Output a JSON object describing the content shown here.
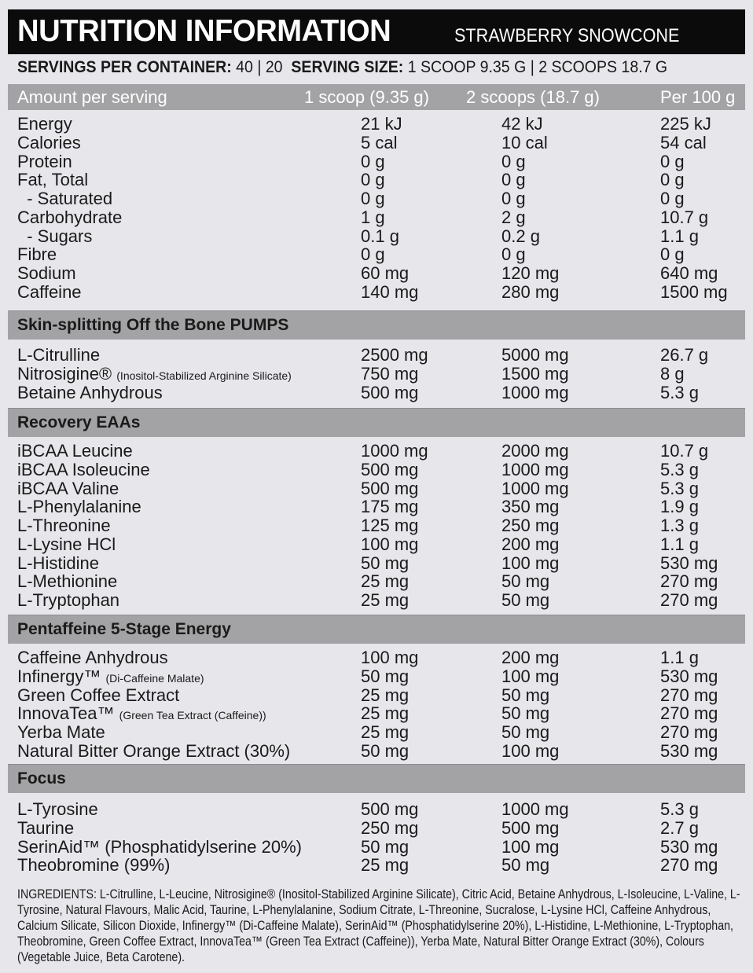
{
  "header": {
    "title": "NUTRITION INFORMATION",
    "flavour": "STRAWBERRY SNOWCONE"
  },
  "servings": {
    "per_container_label": "SERVINGS PER CONTAINER:",
    "per_container_value": "40 | 20",
    "size_label": "SERVING SIZE:",
    "size_value": "1 SCOOP 9.35 G | 2 SCOOPS 18.7 G"
  },
  "columns": [
    "Amount per serving",
    "1 scoop (9.35 g)",
    "2 scoops (18.7 g)",
    "Per 100 g"
  ],
  "nutrition": [
    {
      "name": "Energy",
      "v1": "21 kJ",
      "v2": "42 kJ",
      "v3": "225 kJ"
    },
    {
      "name": "Calories",
      "v1": "5 cal",
      "v2": "10 cal",
      "v3": "54 cal"
    },
    {
      "name": "Protein",
      "v1": "0 g",
      "v2": "0 g",
      "v3": "0 g"
    },
    {
      "name": "Fat, Total",
      "v1": "0 g",
      "v2": "0 g",
      "v3": "0 g"
    },
    {
      "name": "  - Saturated",
      "v1": "0 g",
      "v2": "0 g",
      "v3": "0 g"
    },
    {
      "name": "Carbohydrate",
      "v1": "1 g",
      "v2": "2 g",
      "v3": "10.7 g"
    },
    {
      "name": "  - Sugars",
      "v1": "0.1 g",
      "v2": "0.2 g",
      "v3": "1.1 g"
    },
    {
      "name": "Fibre",
      "v1": "0 g",
      "v2": "0 g",
      "v3": "0 g"
    },
    {
      "name": "Sodium",
      "v1": "60 mg",
      "v2": "120 mg",
      "v3": "640 mg"
    },
    {
      "name": "Caffeine",
      "v1": "140 mg",
      "v2": "280 mg",
      "v3": "1500 mg"
    }
  ],
  "sections": [
    {
      "title": "Skin-splitting Off the Bone PUMPS",
      "rows": [
        {
          "name": "L-Citrulline",
          "note": "",
          "v1": "2500 mg",
          "v2": "5000 mg",
          "v3": "26.7 g"
        },
        {
          "name": "Nitrosigine®",
          "note": "(Inositol-Stabilized Arginine Silicate)",
          "v1": "750 mg",
          "v2": "1500 mg",
          "v3": "8 g"
        },
        {
          "name": "Betaine Anhydrous",
          "note": "",
          "v1": "500 mg",
          "v2": "1000 mg",
          "v3": "5.3 g"
        }
      ]
    },
    {
      "title": "Recovery EAAs",
      "rows": [
        {
          "name": "iBCAA Leucine",
          "note": "",
          "v1": "1000 mg",
          "v2": "2000 mg",
          "v3": "10.7 g"
        },
        {
          "name": "iBCAA Isoleucine",
          "note": "",
          "v1": "500 mg",
          "v2": "1000 mg",
          "v3": "5.3 g"
        },
        {
          "name": "iBCAA Valine",
          "note": "",
          "v1": "500 mg",
          "v2": "1000 mg",
          "v3": "5.3 g"
        },
        {
          "name": "L-Phenylalanine",
          "note": "",
          "v1": "175 mg",
          "v2": "350 mg",
          "v3": "1.9 g"
        },
        {
          "name": "L-Threonine",
          "note": "",
          "v1": "125 mg",
          "v2": "250 mg",
          "v3": "1.3 g"
        },
        {
          "name": "L-Lysine HCl",
          "note": "",
          "v1": "100 mg",
          "v2": "200 mg",
          "v3": "1.1 g"
        },
        {
          "name": "L-Histidine",
          "note": "",
          "v1": "50 mg",
          "v2": "100 mg",
          "v3": "530 mg"
        },
        {
          "name": "L-Methionine",
          "note": "",
          "v1": "25 mg",
          "v2": "50 mg",
          "v3": "270 mg"
        },
        {
          "name": "L-Tryptophan",
          "note": "",
          "v1": "25 mg",
          "v2": "50 mg",
          "v3": "270 mg"
        }
      ]
    },
    {
      "title": "Pentaffeine 5-Stage Energy",
      "rows": [
        {
          "name": "Caffeine Anhydrous",
          "note": "",
          "v1": "100 mg",
          "v2": "200 mg",
          "v3": "1.1 g"
        },
        {
          "name": "Infinergy™",
          "note": "(Di-Caffeine Malate)",
          "v1": "50 mg",
          "v2": "100 mg",
          "v3": "530 mg"
        },
        {
          "name": "Green Coffee Extract",
          "note": "",
          "v1": "25 mg",
          "v2": "50 mg",
          "v3": "270 mg"
        },
        {
          "name": "InnovaTea™",
          "note": "(Green Tea Extract (Caffeine))",
          "v1": "25 mg",
          "v2": "50 mg",
          "v3": "270 mg"
        },
        {
          "name": "Yerba Mate",
          "note": "",
          "v1": "25 mg",
          "v2": "50 mg",
          "v3": "270 mg"
        },
        {
          "name": "Natural Bitter Orange Extract (30%)",
          "note": "",
          "v1": "50 mg",
          "v2": "100 mg",
          "v3": "530 mg"
        }
      ]
    },
    {
      "title": "Focus",
      "rows": [
        {
          "name": "L-Tyrosine",
          "note": "",
          "v1": "500 mg",
          "v2": "1000 mg",
          "v3": "5.3 g"
        },
        {
          "name": "Taurine",
          "note": "",
          "v1": "250 mg",
          "v2": "500 mg",
          "v3": "2.7 g"
        },
        {
          "name": "SerinAid™ (Phosphatidylserine 20%)",
          "note": "",
          "v1": "50 mg",
          "v2": "100 mg",
          "v3": "530 mg"
        },
        {
          "name": "Theobromine (99%)",
          "note": "",
          "v1": "25 mg",
          "v2": "50 mg",
          "v3": "270 mg"
        }
      ]
    }
  ],
  "ingredients": "INGREDIENTS: L-Citrulline, L-Leucine, Nitrosigine® (Inositol-Stabilized Arginine Silicate), Citric Acid, Betaine Anhydrous, L-Isoleucine, L-Valine, L-Tyrosine, Natural Flavours, Malic Acid, Taurine, L-Phenylalanine, Sodium Citrate, L-Threonine, Sucralose, L-Lysine HCl, Caffeine Anhydrous, Calcium Silicate, Silicon Dioxide, Infinergy™ (Di-Caffeine Malate), SerinAid™ (Phosphatidylserine 20%), L-Histidine, L-Methionine, L-Tryptophan, Theobromine, Green Coffee Extract, InnovaTea™ (Green Tea Extract (Caffeine)), Yerba Mate, Natural Bitter Orange Extract (30%), Colours (Vegetable Juice, Beta Carotene)."
}
